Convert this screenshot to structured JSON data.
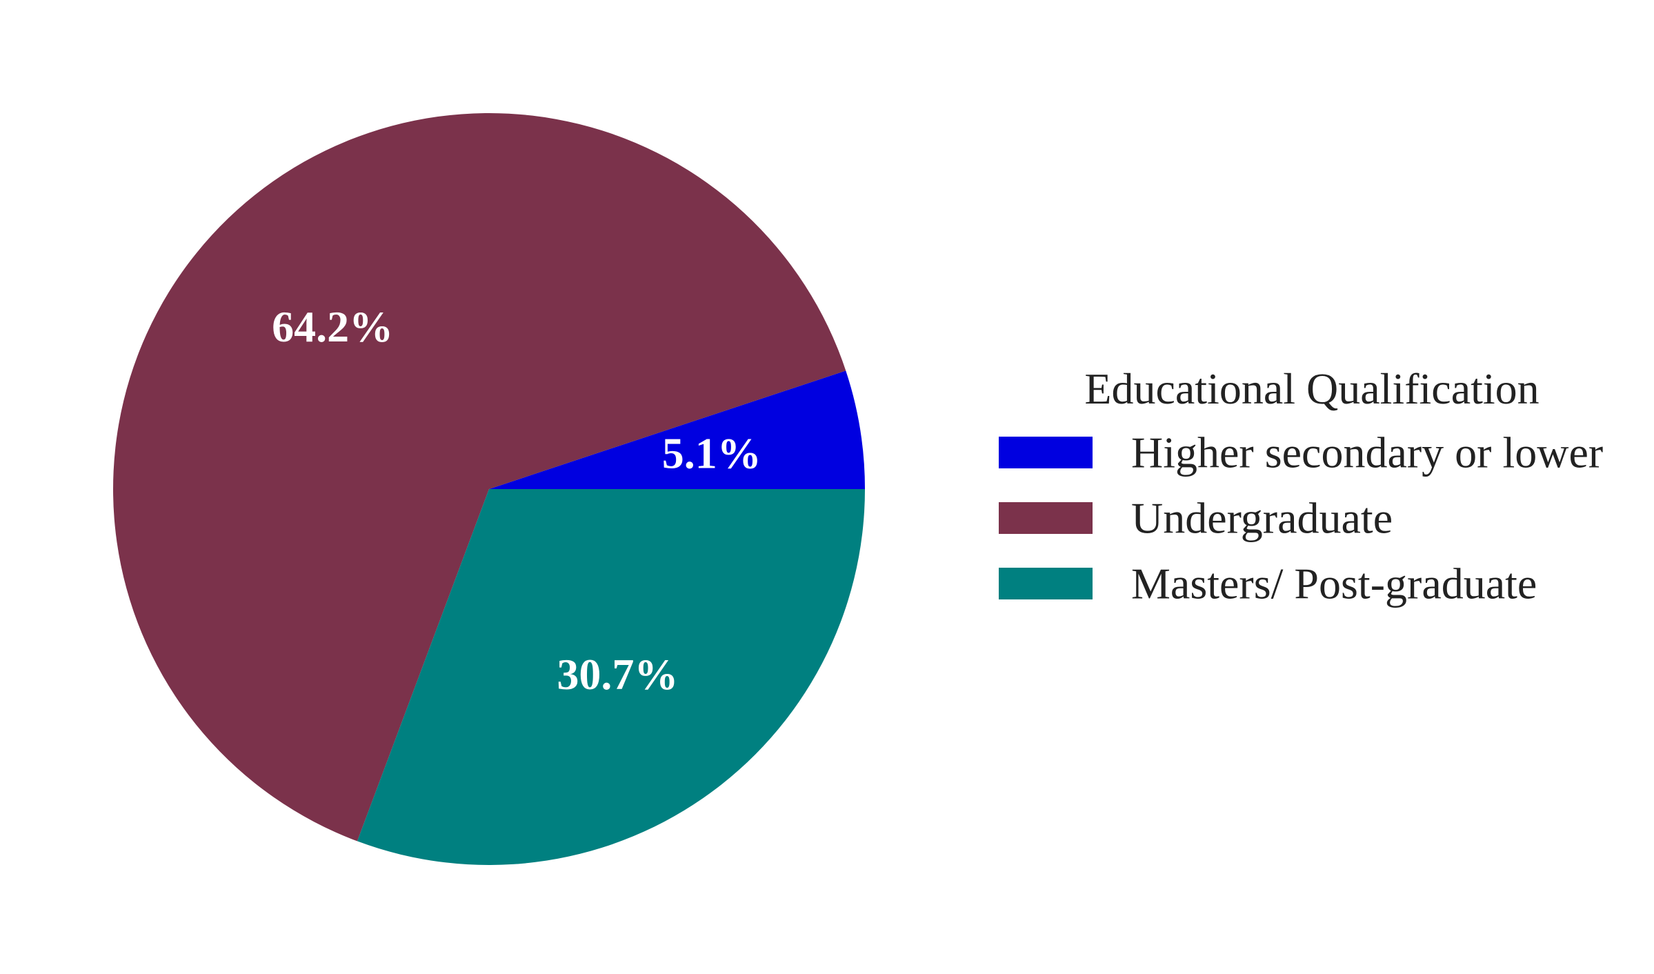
{
  "chart_data": {
    "type": "pie",
    "categories": [
      "Higher secondary or lower",
      "Undergraduate",
      "Masters/ Post-graduate"
    ],
    "values": [
      5.1,
      64.2,
      30.7
    ],
    "value_labels": [
      "5.1%",
      "64.2%",
      "30.7%"
    ],
    "colors": [
      "#0000e0",
      "#7b324b",
      "#008080"
    ],
    "start_angle_deg": 0,
    "direction": "counterclockwise",
    "legend": {
      "title": "Educational Qualification",
      "placement": "right"
    }
  }
}
